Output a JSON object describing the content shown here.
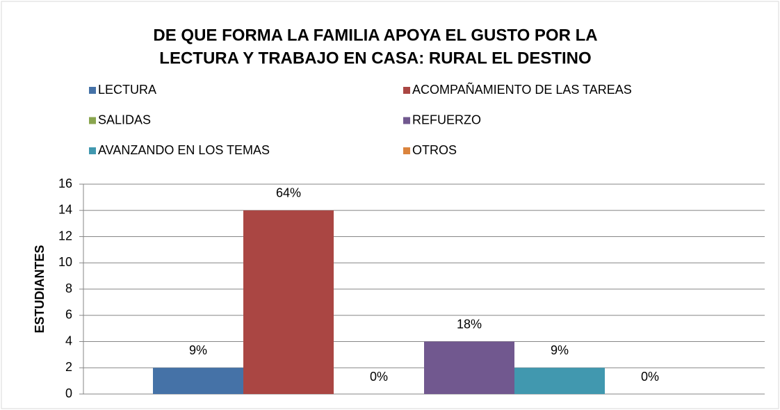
{
  "chart_data": {
    "type": "bar",
    "title": [
      "DE QUE FORMA LA  FAMILIA APOYA EL GUSTO POR  LA",
      "LECTURA Y TRABAJO EN CASA: RURAL EL DESTINO"
    ],
    "y_label": "ESTUDIANTES",
    "categories": [
      null
    ],
    "series": [
      {
        "name": "LECTURA",
        "color": "#4572a7",
        "values": [
          2
        ],
        "value_labels": [
          "9%"
        ]
      },
      {
        "name": "ACOMPAÑAMIENTO DE LAS TAREAS",
        "color": "#aa4643",
        "values": [
          14
        ],
        "value_labels": [
          "64%"
        ]
      },
      {
        "name": "SALIDAS",
        "color": "#89a54e",
        "values": [
          0
        ],
        "value_labels": [
          "0%"
        ]
      },
      {
        "name": "REFUERZO",
        "color": "#71588f",
        "values": [
          4
        ],
        "value_labels": [
          "18%"
        ]
      },
      {
        "name": "AVANZANDO EN LOS TEMAS",
        "color": "#4198af",
        "values": [
          2
        ],
        "value_labels": [
          "9%"
        ]
      },
      {
        "name": "OTROS",
        "color": "#db843d",
        "values": [
          0
        ],
        "value_labels": [
          "0%"
        ]
      }
    ],
    "ylim": [
      0,
      16
    ],
    "yticks": [
      0,
      2,
      4,
      6,
      8,
      10,
      12,
      14,
      16
    ],
    "grid": true,
    "legend": "top"
  }
}
